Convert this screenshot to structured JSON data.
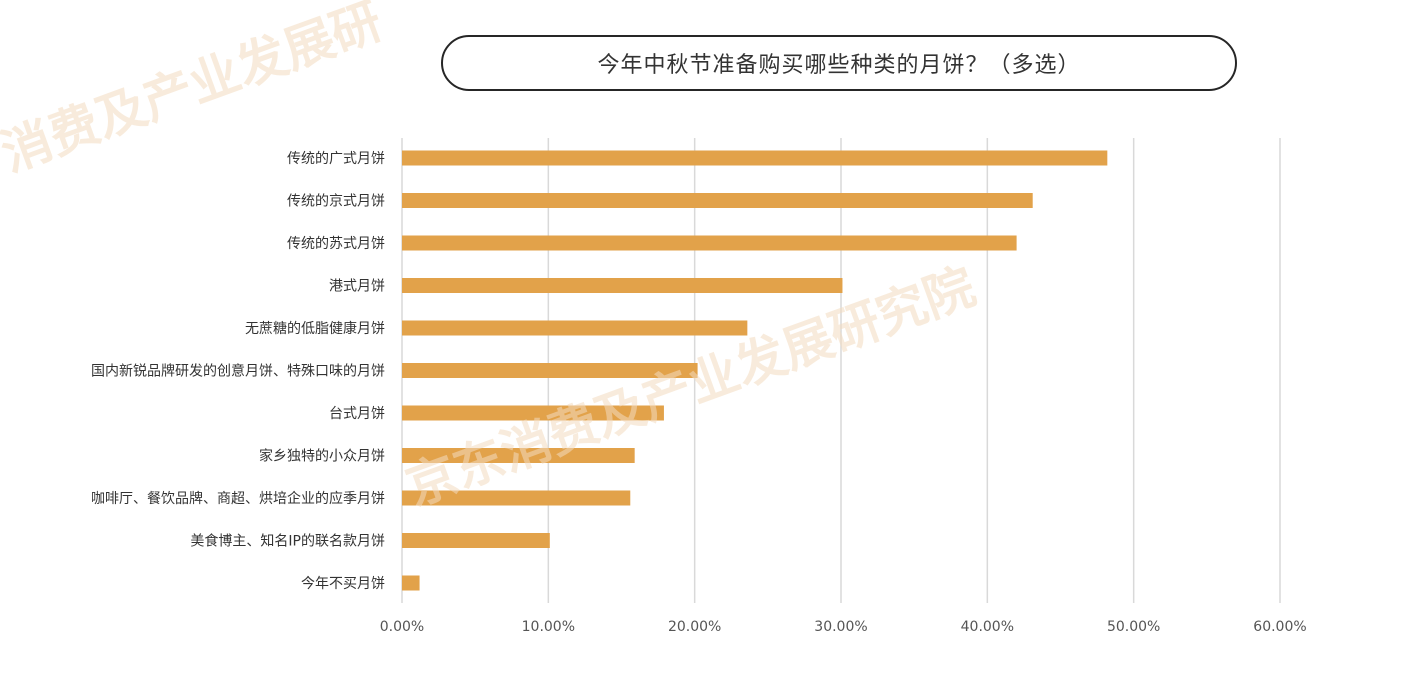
{
  "chart_data": {
    "type": "bar",
    "orientation": "horizontal",
    "title": "今年中秋节准备购买哪些种类的月饼？（多选）",
    "categories": [
      "传统的广式月饼",
      "传统的京式月饼",
      "传统的苏式月饼",
      "港式月饼",
      "无蔗糖的低脂健康月饼",
      "国内新锐品牌研发的创意月饼、特殊口味的月饼",
      "台式月饼",
      "家乡独特的小众月饼",
      "咖啡厅、餐饮品牌、商超、烘培企业的应季月饼",
      "美食博主、知名IP的联名款月饼",
      "今年不买月饼"
    ],
    "values": [
      48.2,
      43.1,
      42.0,
      30.1,
      23.6,
      20.2,
      17.9,
      15.9,
      15.6,
      10.1,
      1.2
    ],
    "xlim": [
      0,
      60
    ],
    "xticks": [
      "0.00%",
      "10.00%",
      "20.00%",
      "30.00%",
      "40.00%",
      "50.00%",
      "60.00%"
    ],
    "grid": true,
    "bar_color": "#E2A24A"
  },
  "watermarks": [
    "消费及产业发展研",
    "京东消费及产业发展研究院"
  ]
}
